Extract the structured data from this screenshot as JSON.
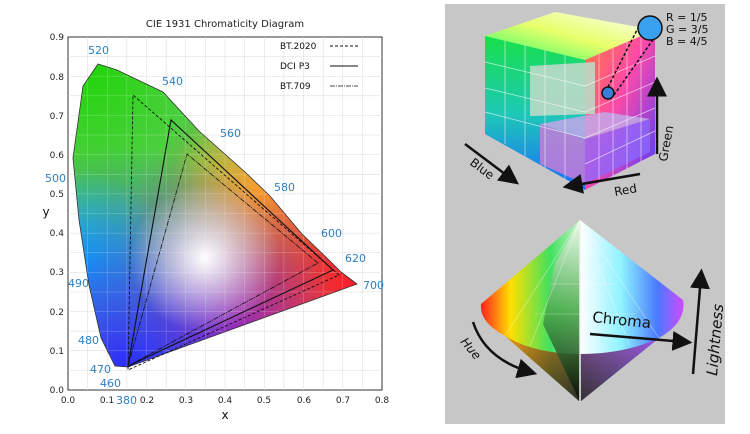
{
  "diagram": {
    "title": "CIE 1931 Chromaticity Diagram",
    "xlabel": "x",
    "ylabel": "y",
    "x_ticks": [
      "0.0",
      "0.1",
      "0.2",
      "0.3",
      "0.4",
      "0.5",
      "0.6",
      "0.7",
      "0.8"
    ],
    "y_ticks": [
      "0.0",
      "0.1",
      "0.2",
      "0.3",
      "0.4",
      "0.5",
      "0.6",
      "0.7",
      "0.8",
      "0.9"
    ],
    "wavelengths": [
      "380",
      "460",
      "470",
      "480",
      "490",
      "500",
      "520",
      "540",
      "560",
      "580",
      "600",
      "620",
      "700"
    ],
    "legend": [
      "BT.2020",
      "DCI P3",
      "BT.709"
    ]
  },
  "cube": {
    "rgb_readout": [
      "R = 1/5",
      "G = 3/5",
      "B = 4/5"
    ],
    "axis_labels": {
      "blue": "Blue",
      "red": "Red",
      "green": "Green"
    }
  },
  "cone": {
    "labels": {
      "chroma": "Chroma",
      "hue": "Hue",
      "lightness": "Lightness"
    }
  },
  "colors": {
    "wavelength_label": "#2f7fc1",
    "panel_background": "#c7c7c7"
  }
}
